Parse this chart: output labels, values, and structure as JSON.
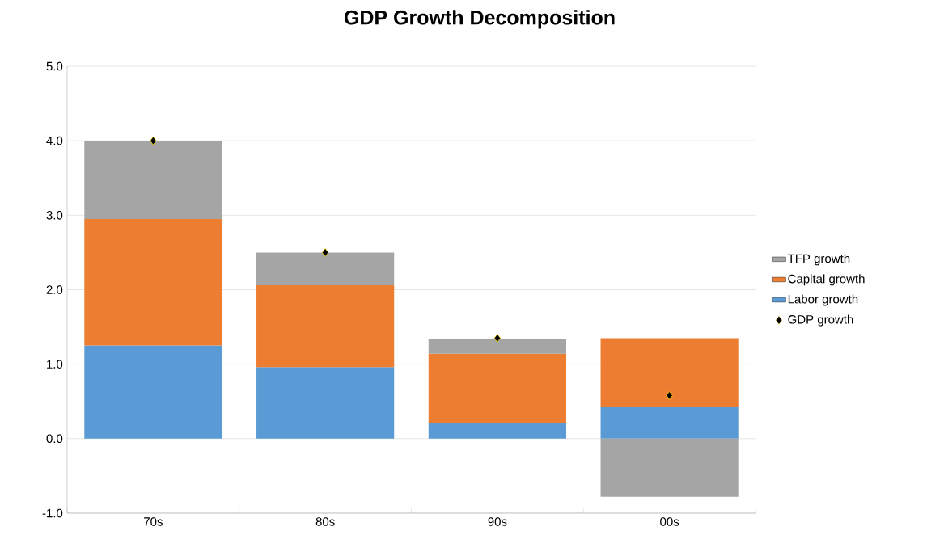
{
  "chart_data": {
    "type": "bar",
    "title": "GDP Growth Decomposition",
    "stacked": true,
    "categories": [
      "70s",
      "80s",
      "90s",
      "00s"
    ],
    "series": [
      {
        "name": "Labor growth",
        "color": "#5b9bd5",
        "values": [
          1.25,
          0.96,
          0.21,
          0.43
        ]
      },
      {
        "name": "Capital growth",
        "color": "#ed7d31",
        "values": [
          1.7,
          1.1,
          0.93,
          0.92
        ]
      },
      {
        "name": "TFP growth",
        "color": "#a5a5a5",
        "values": [
          1.05,
          0.44,
          0.2,
          -0.78
        ]
      },
      {
        "name": "GDP growth",
        "type": "scatter",
        "marker": "diamond",
        "color": "#000000",
        "values": [
          4.0,
          2.5,
          1.35,
          0.58
        ]
      }
    ],
    "ylim": [
      -1,
      5
    ],
    "yticks": [
      {
        "value": -1,
        "label": "-1.0"
      },
      {
        "value": 0,
        "label": "0.0"
      },
      {
        "value": 1,
        "label": "1.0"
      },
      {
        "value": 2,
        "label": "2.0"
      },
      {
        "value": 3,
        "label": "3.0"
      },
      {
        "value": 4,
        "label": "4.0"
      },
      {
        "value": 5,
        "label": "5.0"
      }
    ],
    "grid": "y",
    "legend": "right"
  }
}
